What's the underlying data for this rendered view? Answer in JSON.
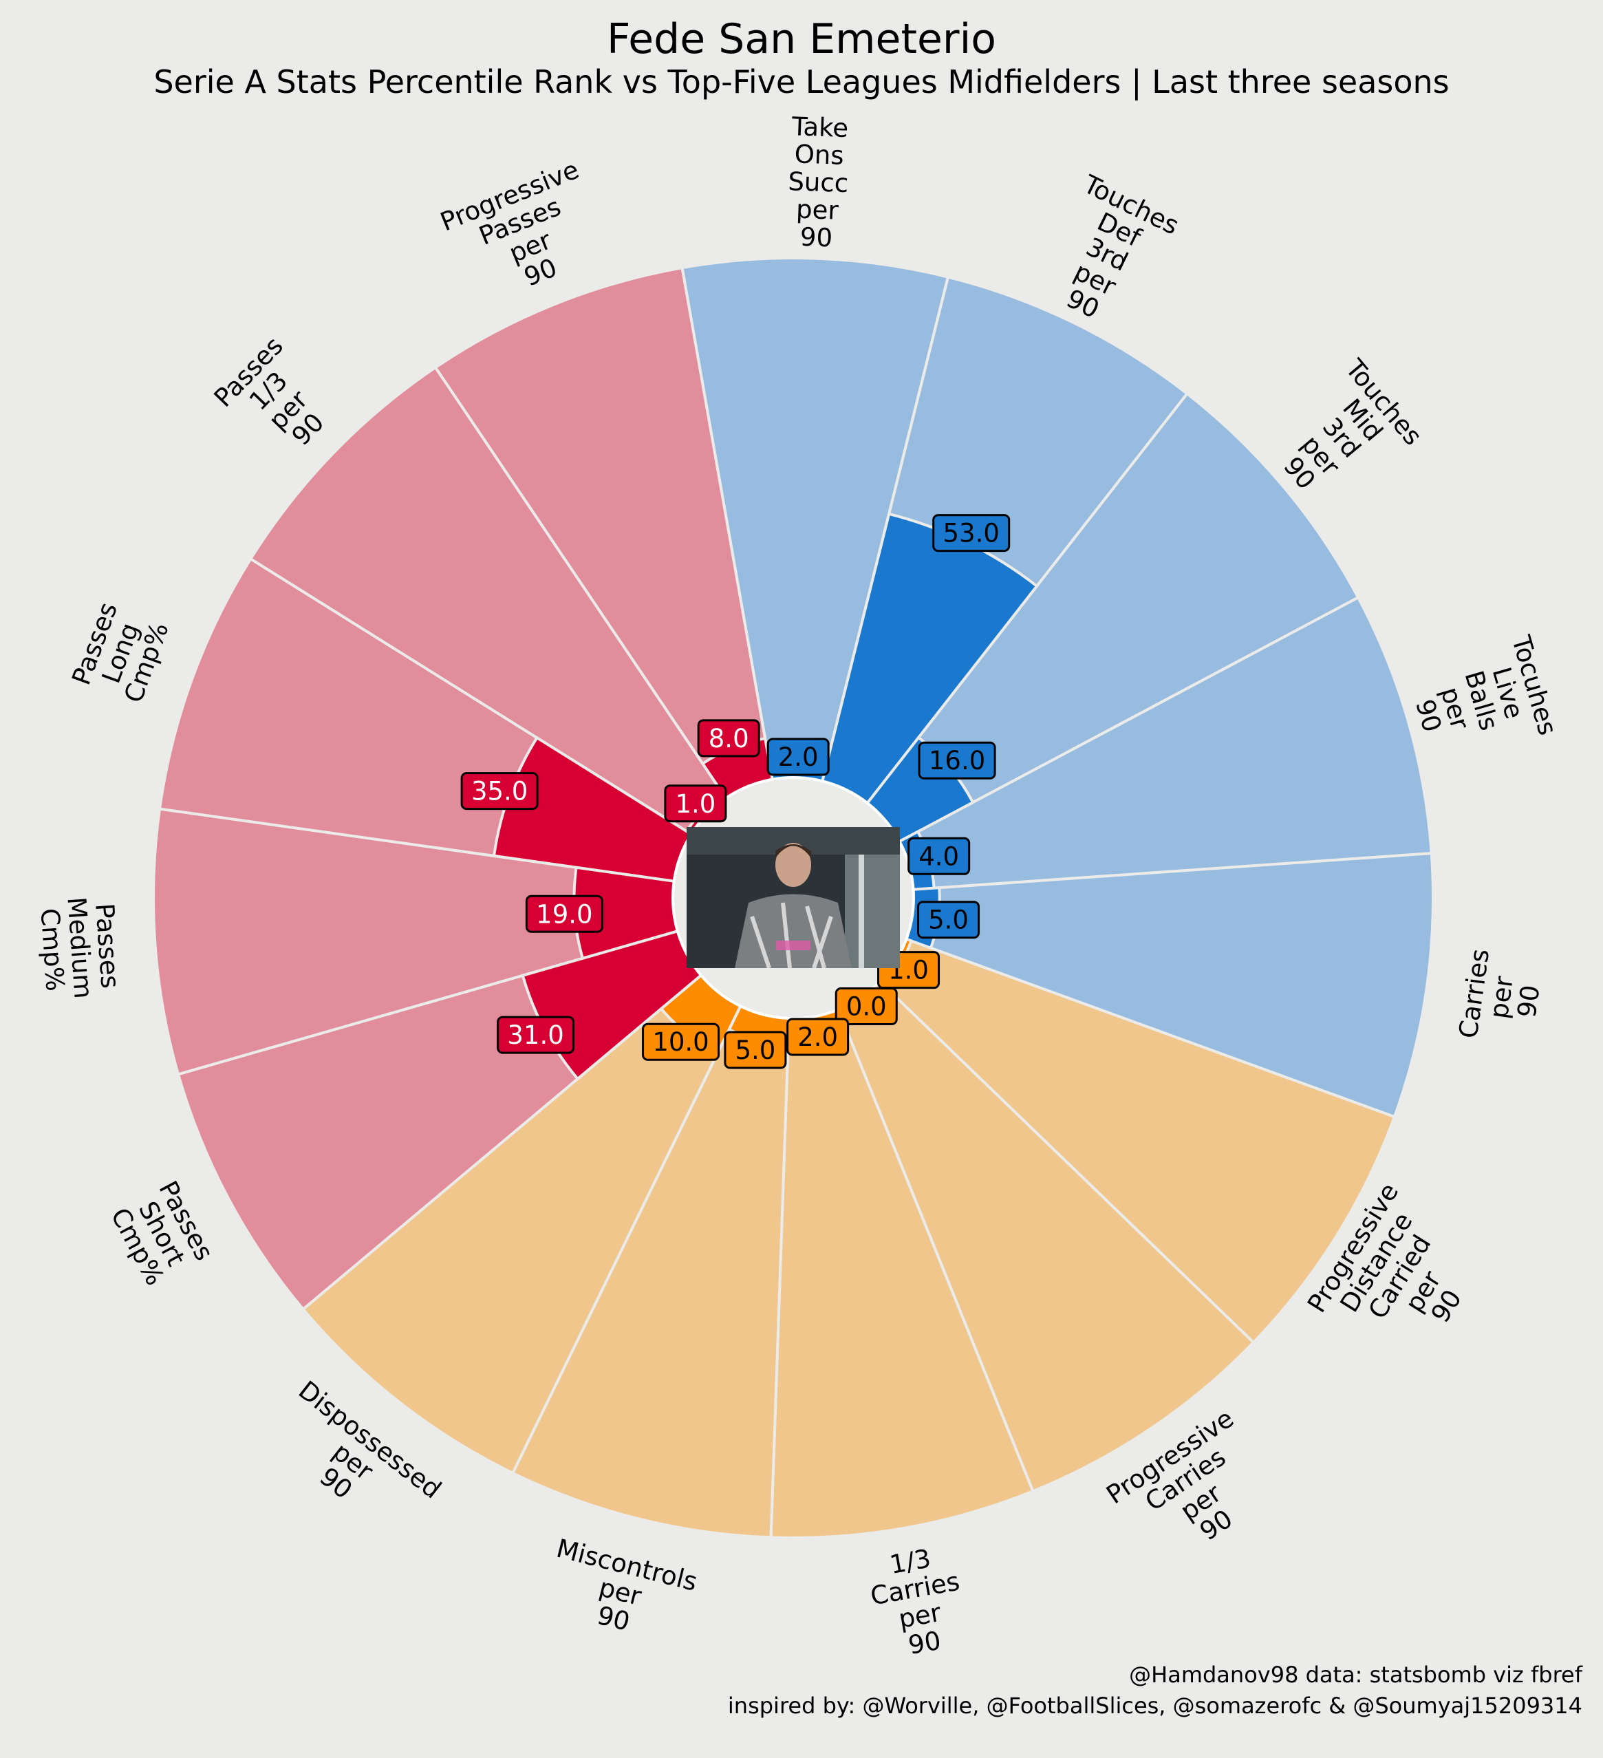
{
  "title": "Fede San Emeterio",
  "subtitle": "Serie A Stats Percentile Rank vs Top-Five Leagues Midfielders | Last three seasons",
  "credits": {
    "line1": "@Hamdanov98 data: statsbomb viz fbref",
    "line2": "inspired by: @Worville, @FootballSlices, @somazerofc & @Soumyaj15209314"
  },
  "chart_data": {
    "type": "bar",
    "subtype": "polar",
    "rlim": [
      0,
      100
    ],
    "groups": [
      {
        "name": "passing",
        "color_light": "#e28d9c",
        "color_dark": "#d80032"
      },
      {
        "name": "possession",
        "color_light": "#97bcdf",
        "color_dark": "#1a78cf"
      },
      {
        "name": "carrying",
        "color_light": "#f0c68c",
        "color_dark": "#ff8c00"
      }
    ],
    "categories": [
      "Take\nOns\nSucc\nper\n90",
      "Touches\nDef\n3rd\nper\n90",
      "Touches\nMid\n3rd\nper\n90",
      "Tocuhes\nLive\nBalls\nper\n90",
      "Carries\nper\n90",
      "Progressive\nDistance\nCarried\nper\n90",
      "Progressive\nCarries\nper\n90",
      "1/3\nCarries\nper\n90",
      "Miscontrols\nper\n90",
      "Dispossessed\nper\n90",
      "Passes\nShort\nCmp%",
      "Passes\nMedium\nCmp%",
      "Passes\nLong\nCmp%",
      "Passes\n1/3\nper\n90",
      "Progressive\nPasses\nper\n90"
    ],
    "category_groups": [
      "possession",
      "possession",
      "possession",
      "possession",
      "possession",
      "carrying",
      "carrying",
      "carrying",
      "carrying",
      "carrying",
      "passing",
      "passing",
      "passing",
      "passing",
      "passing"
    ],
    "values": [
      2.0,
      53.0,
      16.0,
      4.0,
      5.0,
      1.0,
      0.0,
      2.0,
      5.0,
      10.0,
      31.0,
      19.0,
      35.0,
      1.0,
      8.0
    ],
    "value_labels": [
      "2.0",
      "53.0",
      "16.0",
      "4.0",
      "5.0",
      "1.0",
      "0.0",
      "2.0",
      "5.0",
      "10.0",
      "31.0",
      "19.0",
      "35.0",
      "1.0",
      "8.0"
    ]
  }
}
